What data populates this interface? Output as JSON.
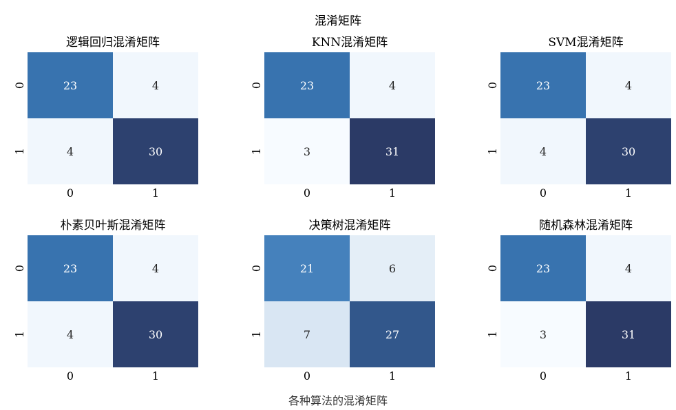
{
  "figure": {
    "suptitle": "混淆矩阵",
    "caption": "各种算法的混淆矩阵"
  },
  "chart_data": [
    {
      "type": "heatmap",
      "title": "逻辑回归混淆矩阵",
      "x_ticks": [
        "0",
        "1"
      ],
      "y_ticks": [
        "0",
        "1"
      ],
      "values": [
        [
          23,
          4
        ],
        [
          4,
          30
        ]
      ],
      "color_range": [
        3,
        31
      ]
    },
    {
      "type": "heatmap",
      "title": "KNN混淆矩阵",
      "x_ticks": [
        "0",
        "1"
      ],
      "y_ticks": [
        "0",
        "1"
      ],
      "values": [
        [
          23,
          4
        ],
        [
          3,
          31
        ]
      ],
      "color_range": [
        3,
        31
      ]
    },
    {
      "type": "heatmap",
      "title": "SVM混淆矩阵",
      "x_ticks": [
        "0",
        "1"
      ],
      "y_ticks": [
        "0",
        "1"
      ],
      "values": [
        [
          23,
          4
        ],
        [
          4,
          30
        ]
      ],
      "color_range": [
        3,
        31
      ]
    },
    {
      "type": "heatmap",
      "title": "朴素贝叶斯混淆矩阵",
      "x_ticks": [
        "0",
        "1"
      ],
      "y_ticks": [
        "0",
        "1"
      ],
      "values": [
        [
          23,
          4
        ],
        [
          4,
          30
        ]
      ],
      "color_range": [
        3,
        31
      ]
    },
    {
      "type": "heatmap",
      "title": "决策树混淆矩阵",
      "x_ticks": [
        "0",
        "1"
      ],
      "y_ticks": [
        "0",
        "1"
      ],
      "values": [
        [
          21,
          6
        ],
        [
          7,
          27
        ]
      ],
      "color_range": [
        3,
        31
      ]
    },
    {
      "type": "heatmap",
      "title": "随机森林混淆矩阵",
      "x_ticks": [
        "0",
        "1"
      ],
      "y_ticks": [
        "0",
        "1"
      ],
      "values": [
        [
          23,
          4
        ],
        [
          3,
          31
        ]
      ],
      "color_range": [
        3,
        31
      ]
    }
  ],
  "colors": {
    "cmap": [
      "#f7fbff",
      "#e6eff8",
      "#3a7ab8",
      "#2b3a66"
    ],
    "light_text": "#ffffff",
    "dark_text": "#222222"
  }
}
